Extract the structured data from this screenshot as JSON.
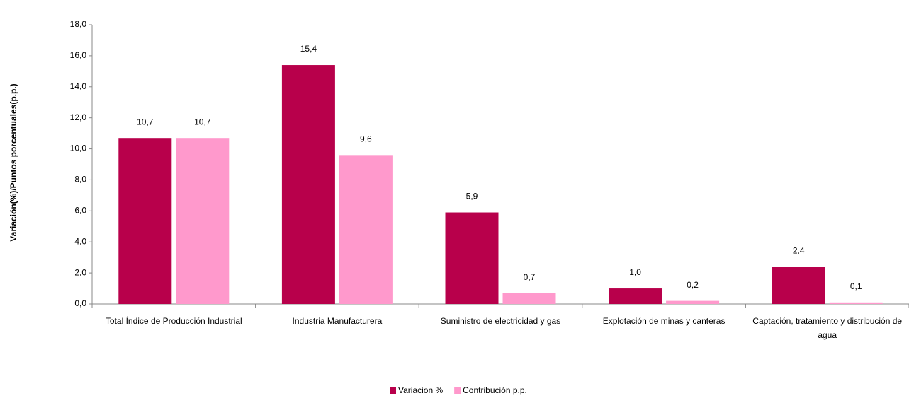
{
  "chart_data": {
    "type": "bar",
    "y_label": "Variación(%)/Puntos  porcentuales(p.p.)",
    "categories": [
      "Total Índice de Producción Industrial",
      "Industria Manufacturera",
      "Suministro de electricidad y gas",
      "Explotación de minas y canteras",
      "Captación, tratamiento y distribución de agua"
    ],
    "series": [
      {
        "name": "Variacion %",
        "color": "#b8004b",
        "values": [
          10.7,
          15.4,
          5.9,
          1.0,
          2.4
        ],
        "value_labels": [
          "10,7",
          "15,4",
          "5,9",
          "1,0",
          "2,4"
        ]
      },
      {
        "name": "Contribución p.p.",
        "color": "#ff99cc",
        "values": [
          10.7,
          9.6,
          0.7,
          0.2,
          0.1
        ],
        "value_labels": [
          "10,7",
          "9,6",
          "0,7",
          "0,2",
          "0,1"
        ]
      }
    ],
    "ylim": [
      0,
      18
    ],
    "yticks": [
      {
        "value": 0,
        "label": "0,0"
      },
      {
        "value": 2,
        "label": "2,0"
      },
      {
        "value": 4,
        "label": "4,0"
      },
      {
        "value": 6,
        "label": "6,0"
      },
      {
        "value": 8,
        "label": "8,0"
      },
      {
        "value": 10,
        "label": "10,0"
      },
      {
        "value": 12,
        "label": "12,0"
      },
      {
        "value": 14,
        "label": "14,0"
      },
      {
        "value": 16,
        "label": "16,0"
      },
      {
        "value": 18,
        "label": "18,0"
      }
    ],
    "legend": "bottom"
  }
}
